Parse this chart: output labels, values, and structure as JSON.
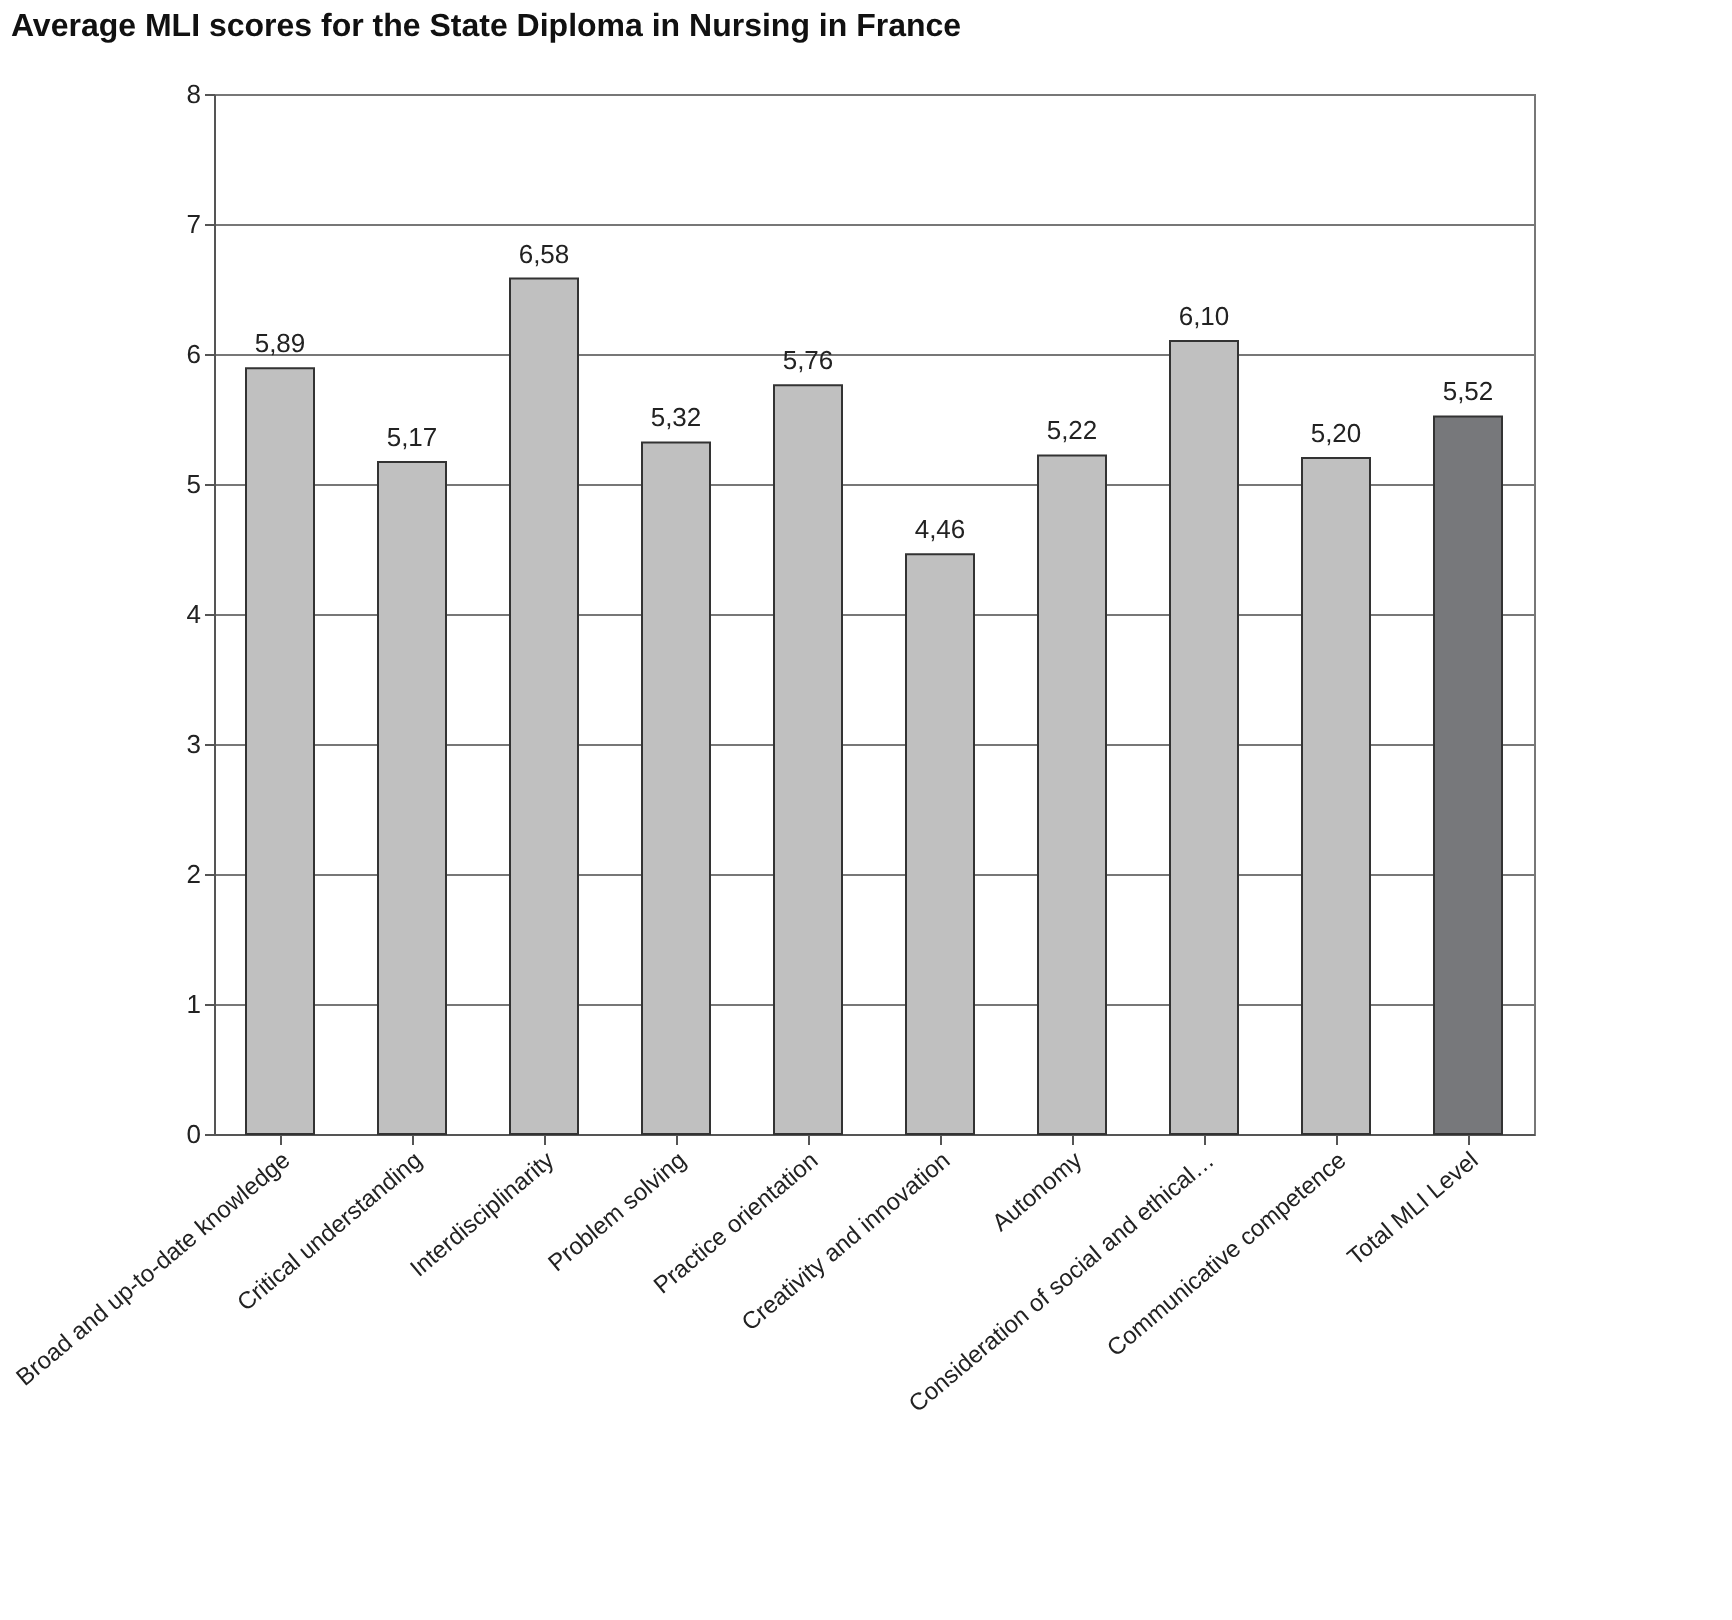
{
  "chart_data": {
    "type": "bar",
    "title": "Average MLI scores for the State Diploma in Nursing in France",
    "categories": [
      "Broad and up-to-date knowledge",
      "Critical understanding",
      "Interdisciplinarity",
      "Problem solving",
      "Practice orientation",
      "Creativity and innovation",
      "Autonomy",
      "Consideration of social and ethical…",
      "Communicative competence",
      "Total MLI Level"
    ],
    "values": [
      5.89,
      5.17,
      6.58,
      5.32,
      5.76,
      4.46,
      5.22,
      6.1,
      5.2,
      5.52
    ],
    "value_labels": [
      "5,89",
      "5,17",
      "6,58",
      "5,32",
      "5,76",
      "4,46",
      "5,22",
      "6,10",
      "5,20",
      "5,52"
    ],
    "colors": [
      "#c0c0c0",
      "#c0c0c0",
      "#c0c0c0",
      "#c0c0c0",
      "#c0c0c0",
      "#c0c0c0",
      "#c0c0c0",
      "#c0c0c0",
      "#c0c0c0",
      "#77787b"
    ],
    "ylim": [
      0,
      8
    ],
    "yticks": [
      0,
      1,
      2,
      3,
      4,
      5,
      6,
      7,
      8
    ],
    "grid": "y"
  }
}
